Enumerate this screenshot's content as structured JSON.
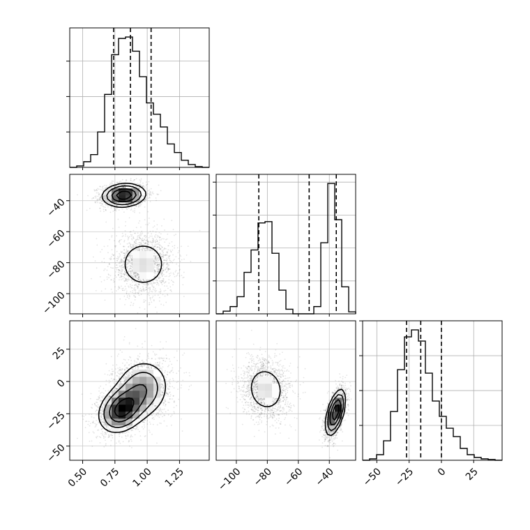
{
  "chart_data": {
    "type": "corner",
    "parameters": [
      "p0",
      "p1",
      "p2"
    ],
    "ranges": [
      [
        0.4,
        1.48
      ],
      [
        -113,
        -23
      ],
      [
        -61,
        47
      ]
    ],
    "x_ticks": [
      {
        "values": [
          0.5,
          0.75,
          1.0,
          1.25
        ],
        "labels": [
          "0.50",
          "0.75",
          "1.00",
          "1.25"
        ]
      },
      {
        "values": [
          -100,
          -80,
          -60,
          -40
        ],
        "labels": [
          "−100",
          "−80",
          "−60",
          "−40"
        ]
      },
      {
        "values": [
          -50,
          -25,
          0,
          25
        ],
        "labels": [
          "−50",
          "−25",
          "0",
          "25"
        ]
      }
    ],
    "y_ticks": [
      {
        "values": [
          -40,
          -60,
          -80,
          -100
        ],
        "labels": [
          "−40",
          "−60",
          "−80",
          "−100"
        ]
      },
      {
        "values": [
          25,
          0,
          -25,
          -50
        ],
        "labels": [
          "25",
          "0",
          "−25",
          "−50"
        ]
      }
    ],
    "histograms": [
      {
        "param": 0,
        "bin_edges": [
          0.4,
          0.454,
          0.508,
          0.562,
          0.616,
          0.67,
          0.724,
          0.778,
          0.832,
          0.886,
          0.94,
          0.994,
          1.048,
          1.102,
          1.156,
          1.21,
          1.264,
          1.318,
          1.372,
          1.426,
          1.48
        ],
        "counts": [
          0,
          2,
          8,
          18,
          50,
          103,
          159,
          182,
          184,
          164,
          128,
          91,
          75,
          57,
          33,
          21,
          10,
          4,
          1,
          0
        ],
        "quantiles": [
          0.74,
          0.87,
          1.03
        ]
      },
      {
        "param": 1,
        "bin_edges": [
          -113,
          -108.5,
          -104,
          -99.5,
          -95,
          -90.5,
          -86,
          -81.5,
          -77,
          -72.5,
          -68,
          -63.5,
          -59,
          -54.5,
          -50,
          -45.5,
          -41,
          -36.5,
          -32,
          -27.5,
          -23
        ],
        "counts": [
          0,
          4,
          11,
          26,
          63,
          97,
          138,
          140,
          92,
          36,
          7,
          0,
          0,
          0,
          11,
          108,
          198,
          143,
          41,
          3
        ],
        "quantiles": [
          -85.5,
          -53,
          -35.5
        ]
      },
      {
        "param": 2,
        "bin_edges": [
          -61,
          -55.6,
          -50.2,
          -44.8,
          -39.4,
          -34,
          -28.6,
          -23.2,
          -17.8,
          -12.4,
          -7,
          -1.6,
          3.8,
          9.2,
          14.6,
          20,
          25.4,
          30.8,
          36.2,
          41.6,
          47
        ],
        "counts": [
          0,
          2,
          8,
          28,
          70,
          130,
          177,
          187,
          171,
          125,
          85,
          63,
          46,
          34,
          17,
          8,
          4,
          2,
          1,
          0
        ],
        "quantiles": [
          -27,
          -16,
          0
        ]
      }
    ],
    "pairs": [
      {
        "x_param": 0,
        "y_param": 1,
        "modes": [
          {
            "center": [
              0.82,
              -36.5
            ],
            "sd": [
              0.085,
              3.8
            ],
            "rho": 0.1,
            "weight": 0.5
          },
          {
            "center": [
              0.97,
              -81
            ],
            "sd": [
              0.115,
              9.5
            ],
            "rho": 0.0,
            "weight": 0.5
          }
        ]
      },
      {
        "x_param": 0,
        "y_param": 2,
        "modes": [
          {
            "center": [
              0.8,
              -22
            ],
            "sd": [
              0.09,
              9
            ],
            "rho": 0.25,
            "weight": 0.5
          },
          {
            "center": [
              0.96,
              -6
            ],
            "sd": [
              0.11,
              12
            ],
            "rho": 0.1,
            "weight": 0.5
          }
        ]
      },
      {
        "x_param": 1,
        "y_param": 2,
        "modes": [
          {
            "center": [
              -81,
              -6
            ],
            "sd": [
              7.5,
              11
            ],
            "rho": -0.1,
            "weight": 0.5
          },
          {
            "center": [
              -36,
              -24
            ],
            "sd": [
              3.2,
              9
            ],
            "rho": 0.55,
            "weight": 0.5
          }
        ]
      }
    ],
    "grid": true,
    "title": "",
    "xlabel": "",
    "ylabel": ""
  }
}
